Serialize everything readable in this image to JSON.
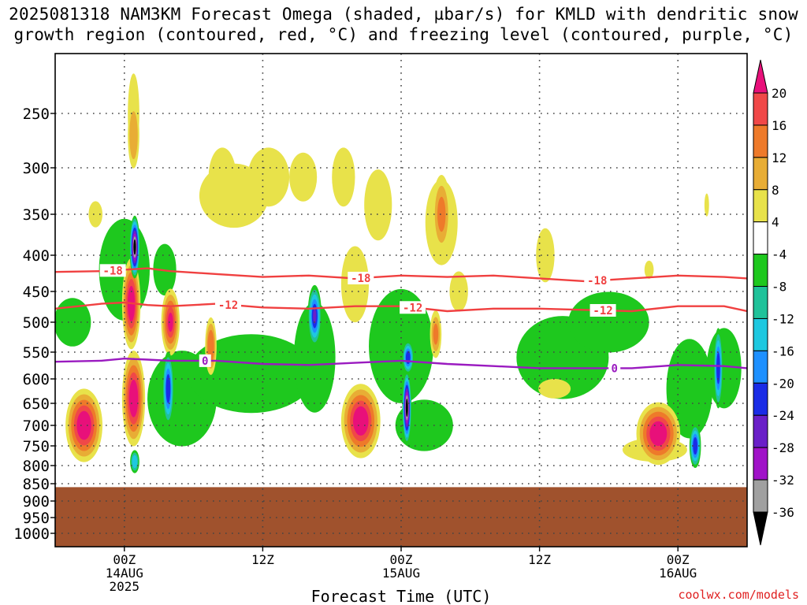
{
  "title": {
    "line1": "2025081318 NAM3KM Forecast Omega (shaded, µbar/s) for KMLD with dendritic snow",
    "line2": "growth region (contoured, red, °C) and freezing level (contoured, purple, °C)"
  },
  "watermark": "coolwx.com/models",
  "chart_data": {
    "type": "heatmap",
    "xlabel": "Forecast Time (UTC)",
    "x_ticks": [
      {
        "hour": 0,
        "lines": [
          "00Z",
          "14AUG",
          "2025"
        ]
      },
      {
        "hour": 12,
        "lines": [
          "12Z"
        ]
      },
      {
        "hour": 24,
        "lines": [
          "00Z",
          "15AUG"
        ]
      },
      {
        "hour": 36,
        "lines": [
          "12Z"
        ]
      },
      {
        "hour": 48,
        "lines": [
          "00Z",
          "16AUG"
        ]
      }
    ],
    "xlim": [
      -6,
      54
    ],
    "y_ticks": [
      250,
      300,
      350,
      400,
      450,
      500,
      550,
      600,
      650,
      700,
      750,
      800,
      850,
      900,
      950,
      1000
    ],
    "ylim": [
      1000,
      200
    ],
    "ground_pressure": 860,
    "colors": {
      "ground": "#a0522d",
      "dgz_contour": "#f04040",
      "freezing_contour": "#9a1ac0",
      "grid": "#444444"
    },
    "colorbar": {
      "tick_labels": [
        "20",
        "16",
        "12",
        "8",
        "4",
        "-4",
        "-8",
        "-12",
        "-16",
        "-20",
        "-24",
        "-28",
        "-32",
        "-36"
      ],
      "bins": [
        {
          "lo": 20,
          "hi": 99,
          "color": "#e8107a"
        },
        {
          "lo": 16,
          "hi": 20,
          "color": "#f04848"
        },
        {
          "lo": 12,
          "hi": 16,
          "color": "#ee7a2a"
        },
        {
          "lo": 8,
          "hi": 12,
          "color": "#e8ad35"
        },
        {
          "lo": 4,
          "hi": 8,
          "color": "#e8e24a"
        },
        {
          "lo": -4,
          "hi": 4,
          "color": "#ffffff"
        },
        {
          "lo": -8,
          "hi": -4,
          "color": "#1ec81e"
        },
        {
          "lo": -12,
          "hi": -8,
          "color": "#20c29a"
        },
        {
          "lo": -16,
          "hi": -12,
          "color": "#1ec8e0"
        },
        {
          "lo": -20,
          "hi": -16,
          "color": "#1e90ff"
        },
        {
          "lo": -24,
          "hi": -20,
          "color": "#1a2ce6"
        },
        {
          "lo": -28,
          "hi": -24,
          "color": "#6a1fc8"
        },
        {
          "lo": -32,
          "hi": -28,
          "color": "#a012c8"
        },
        {
          "lo": -36,
          "hi": -32,
          "color": "#a0a0a0"
        },
        {
          "lo": -99,
          "hi": -36,
          "color": "#000000"
        }
      ]
    },
    "omega_cells": [
      {
        "t": -3.5,
        "p": 700,
        "v": 22,
        "dt": 1.6,
        "dp": 170
      },
      {
        "t": 0.6,
        "p": 470,
        "v": 22,
        "dt": 0.8,
        "dp": 140
      },
      {
        "t": 0.8,
        "p": 640,
        "v": 24,
        "dt": 1.0,
        "dp": 200
      },
      {
        "t": 0.9,
        "p": 390,
        "v": -38,
        "dt": 0.45,
        "dp": 80
      },
      {
        "t": 0.8,
        "p": 270,
        "v": 10,
        "dt": 0.5,
        "dp": 60
      },
      {
        "t": 0.9,
        "p": 790,
        "v": -14,
        "dt": 0.4,
        "dp": 60
      },
      {
        "t": 4.0,
        "p": 500,
        "v": 21,
        "dt": 0.8,
        "dp": 110
      },
      {
        "t": 3.8,
        "p": 620,
        "v": -22,
        "dt": 0.5,
        "dp": 150
      },
      {
        "t": 7.5,
        "p": 540,
        "v": 15,
        "dt": 0.5,
        "dp": 100
      },
      {
        "t": 8.5,
        "p": 310,
        "v": 6,
        "dt": 1.2,
        "dp": 60
      },
      {
        "t": 12.5,
        "p": 310,
        "v": 6,
        "dt": 1.8,
        "dp": 60
      },
      {
        "t": 16.5,
        "p": 490,
        "v": -25,
        "dt": 0.6,
        "dp": 100
      },
      {
        "t": 20.5,
        "p": 690,
        "v": 22,
        "dt": 1.7,
        "dp": 170
      },
      {
        "t": 24.5,
        "p": 660,
        "v": -38,
        "dt": 0.4,
        "dp": 160
      },
      {
        "t": 24.6,
        "p": 560,
        "v": -22,
        "dt": 0.5,
        "dp": 60
      },
      {
        "t": 27.5,
        "p": 350,
        "v": 12,
        "dt": 0.8,
        "dp": 90
      },
      {
        "t": 27.0,
        "p": 520,
        "v": 12,
        "dt": 0.5,
        "dp": 80
      },
      {
        "t": 29.0,
        "p": 450,
        "v": 6,
        "dt": 0.8,
        "dp": 60
      },
      {
        "t": 46.3,
        "p": 720,
        "v": 22,
        "dt": 1.9,
        "dp": 150
      },
      {
        "t": 49.5,
        "p": 750,
        "v": -24,
        "dt": 0.5,
        "dp": 110
      },
      {
        "t": 51.5,
        "p": 580,
        "v": -24,
        "dt": 0.4,
        "dp": 150
      },
      {
        "t": 20.0,
        "p": 440,
        "v": 6,
        "dt": 1.2,
        "dp": 110
      }
    ],
    "green_regions": [
      {
        "t": -4.5,
        "p": 500,
        "dt": 1.6,
        "dp": 80
      },
      {
        "t": 0.0,
        "p": 420,
        "dt": 2.2,
        "dp": 140
      },
      {
        "t": 5.0,
        "p": 640,
        "dt": 3.0,
        "dp": 200
      },
      {
        "t": 11.0,
        "p": 590,
        "dt": 5.5,
        "dp": 150
      },
      {
        "t": 16.5,
        "p": 560,
        "dt": 1.8,
        "dp": 200
      },
      {
        "t": 24.0,
        "p": 540,
        "dt": 2.8,
        "dp": 200
      },
      {
        "t": 26.0,
        "p": 700,
        "dt": 2.5,
        "dp": 120
      },
      {
        "t": 38.0,
        "p": 560,
        "dt": 4.0,
        "dp": 150
      },
      {
        "t": 42.0,
        "p": 500,
        "dt": 3.5,
        "dp": 100
      },
      {
        "t": 49.0,
        "p": 620,
        "dt": 2.0,
        "dp": 200
      },
      {
        "t": 52.0,
        "p": 580,
        "dt": 1.5,
        "dp": 150
      },
      {
        "t": 3.5,
        "p": 420,
        "dt": 1.0,
        "dp": 70
      }
    ],
    "yellow_regions": [
      {
        "t": -2.5,
        "p": 350,
        "dt": 0.6,
        "dp": 30
      },
      {
        "t": 0.8,
        "p": 250,
        "dt": 0.5,
        "dp": 70
      },
      {
        "t": 9.5,
        "p": 330,
        "dt": 3.0,
        "dp": 70
      },
      {
        "t": 15.5,
        "p": 310,
        "dt": 1.2,
        "dp": 50
      },
      {
        "t": 19.0,
        "p": 310,
        "dt": 1.0,
        "dp": 60
      },
      {
        "t": 22.0,
        "p": 340,
        "dt": 1.2,
        "dp": 80
      },
      {
        "t": 27.5,
        "p": 360,
        "dt": 1.4,
        "dp": 100
      },
      {
        "t": 36.5,
        "p": 400,
        "dt": 0.8,
        "dp": 70
      },
      {
        "t": 37.3,
        "p": 620,
        "dt": 1.4,
        "dp": 40
      },
      {
        "t": 46.0,
        "p": 760,
        "dt": 2.8,
        "dp": 60
      },
      {
        "t": 50.5,
        "p": 340,
        "dt": 0.2,
        "dp": 25
      },
      {
        "t": 45.5,
        "p": 420,
        "dt": 0.4,
        "dp": 25
      }
    ],
    "contours": [
      {
        "name": "dgz_minus18",
        "label": "-18",
        "kind": "dgz",
        "t": [
          -6,
          -2,
          0,
          2,
          4,
          8,
          12,
          16,
          20,
          24,
          28,
          32,
          36,
          40,
          44,
          48,
          52,
          54
        ],
        "p": [
          423,
          422,
          420,
          418,
          422,
          426,
          430,
          428,
          432,
          428,
          430,
          428,
          432,
          436,
          432,
          428,
          430,
          432
        ],
        "label_at": [
          -1,
          20.5,
          41
        ]
      },
      {
        "name": "dgz_minus12",
        "label": "-12",
        "kind": "dgz",
        "t": [
          -6,
          -2,
          0,
          2,
          4,
          8,
          12,
          16,
          20,
          24,
          28,
          32,
          36,
          40,
          44,
          48,
          52,
          54
        ],
        "p": [
          478,
          470,
          468,
          472,
          474,
          470,
          476,
          478,
          474,
          474,
          482,
          478,
          478,
          480,
          482,
          474,
          474,
          482
        ],
        "label_at": [
          9,
          25,
          41.5
        ]
      },
      {
        "name": "freezing_level",
        "label": "0",
        "kind": "freezing",
        "t": [
          -6,
          -2,
          0,
          2,
          4,
          8,
          12,
          16,
          20,
          24,
          28,
          32,
          36,
          40,
          44,
          48,
          52,
          54
        ],
        "p": [
          568,
          566,
          562,
          564,
          566,
          566,
          572,
          574,
          570,
          566,
          572,
          576,
          580,
          580,
          580,
          574,
          576,
          580
        ],
        "label_at": [
          7,
          42.5
        ]
      }
    ]
  }
}
